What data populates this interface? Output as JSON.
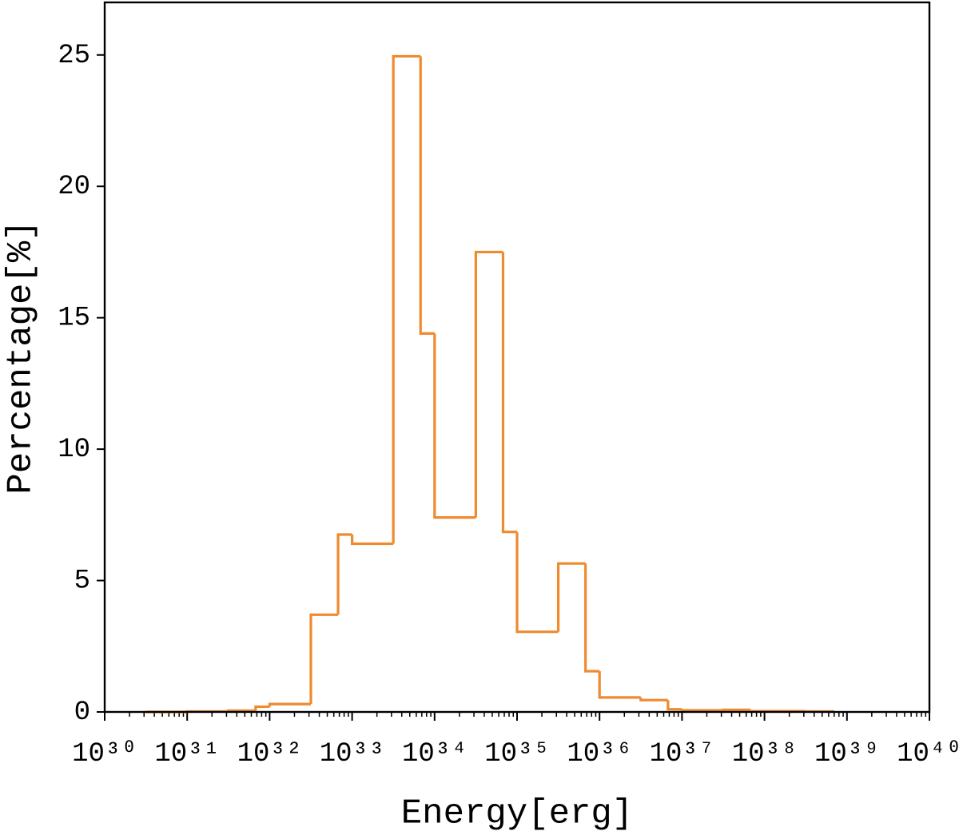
{
  "chart_data": {
    "type": "histogram",
    "xlabel": "Energy[erg]",
    "ylabel": "Percentage[%]",
    "xscale": "log",
    "color": "#ef8a2f",
    "xlim": [
      1e+30,
      1e+40
    ],
    "ylim": [
      0,
      27
    ],
    "xticks": [
      {
        "value": 1e+30,
        "label": "10³⁰"
      },
      {
        "value": 1e+31,
        "label": "10³¹"
      },
      {
        "value": 1e+32,
        "label": "10³²"
      },
      {
        "value": 1e+33,
        "label": "10³³"
      },
      {
        "value": 1e+34,
        "label": "10³⁴"
      },
      {
        "value": 1e+35,
        "label": "10³⁵"
      },
      {
        "value": 1e+36,
        "label": "10³⁶"
      },
      {
        "value": 1e+37,
        "label": "10³⁷"
      },
      {
        "value": 1e+38,
        "label": "10³⁸"
      },
      {
        "value": 1e+39,
        "label": "10³⁹"
      },
      {
        "value": 1e+40,
        "label": "10⁴⁰"
      }
    ],
    "yticks": [
      0,
      5,
      10,
      15,
      20,
      25
    ],
    "bins": [
      3.16e+30,
      6.76e+30,
      1e+31,
      3.16e+31,
      6.76e+31,
      1e+32,
      3.16e+32,
      6.76e+32,
      1e+33,
      3.16e+33,
      6.76e+33,
      1e+34,
      3.16e+34,
      6.76e+34,
      1e+35,
      3.16e+35,
      6.76e+35,
      1e+36,
      3.16e+36,
      6.76e+36,
      1e+37,
      3.16e+37,
      6.76e+37,
      1e+38,
      3.16e+38,
      6.76e+38
    ],
    "counts": [
      0,
      0,
      0.02,
      0.05,
      0.2,
      0.3,
      3.7,
      6.75,
      6.4,
      24.95,
      14.4,
      7.4,
      17.5,
      6.85,
      3.05,
      5.65,
      1.55,
      0.55,
      0.45,
      0.1,
      0.06,
      0.08,
      0.03,
      0.03,
      0.02
    ]
  }
}
